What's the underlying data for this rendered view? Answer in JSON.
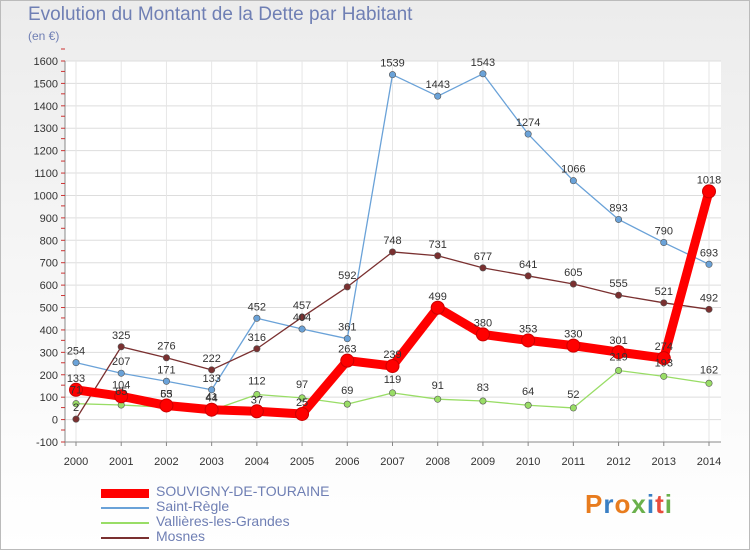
{
  "header": {
    "title": "Evolution du Montant de la Dette par Habitant",
    "subtitle": "(en €)"
  },
  "logo": {
    "text": "Proxiti",
    "colors": [
      "#e87c1e",
      "#3a7fc4",
      "#e87c1e",
      "#6ab04c",
      "#3a7fc4",
      "#e84c3d",
      "#6ab04c"
    ]
  },
  "chart_data": {
    "type": "line",
    "title": "Evolution du Montant de la Dette par Habitant",
    "ylabel": "(en €)",
    "xlabel": "",
    "x": [
      "2000",
      "2001",
      "2002",
      "2003",
      "2004",
      "2005",
      "2006",
      "2007",
      "2008",
      "2009",
      "2010",
      "2011",
      "2012",
      "2013",
      "2014"
    ],
    "ylim": [
      -100,
      1600
    ],
    "yticks": [
      -100,
      0,
      100,
      200,
      300,
      400,
      500,
      600,
      700,
      800,
      900,
      1000,
      1100,
      1200,
      1300,
      1400,
      1500,
      1600
    ],
    "grid": true,
    "legend_position": "bottom",
    "series": [
      {
        "name": "SOUVIGNY-DE-TOURAINE",
        "color": "#ff0000",
        "label_color": "#6f7fb4",
        "values": [
          133,
          104,
          63,
          44,
          37,
          25,
          263,
          239,
          499,
          380,
          353,
          330,
          301,
          274,
          1018
        ]
      },
      {
        "name": "Saint-Règle",
        "color": "#6aa2d8",
        "label_color": "#6f7fb4",
        "values": [
          254,
          207,
          171,
          133,
          452,
          404,
          361,
          1539,
          1443,
          1543,
          1274,
          1066,
          893,
          790,
          693
        ]
      },
      {
        "name": "Vallières-les-Grandes",
        "color": "#99dd66",
        "label_color": "#6f7fb4",
        "values": [
          71,
          65,
          55,
          41,
          112,
          97,
          69,
          119,
          91,
          83,
          64,
          52,
          219,
          193,
          162
        ]
      },
      {
        "name": "Mosnes",
        "color": "#7a3030",
        "label_color": "#6f7fb4",
        "values": [
          2,
          325,
          276,
          222,
          316,
          457,
          592,
          748,
          731,
          677,
          641,
          605,
          555,
          521,
          492
        ]
      }
    ]
  }
}
